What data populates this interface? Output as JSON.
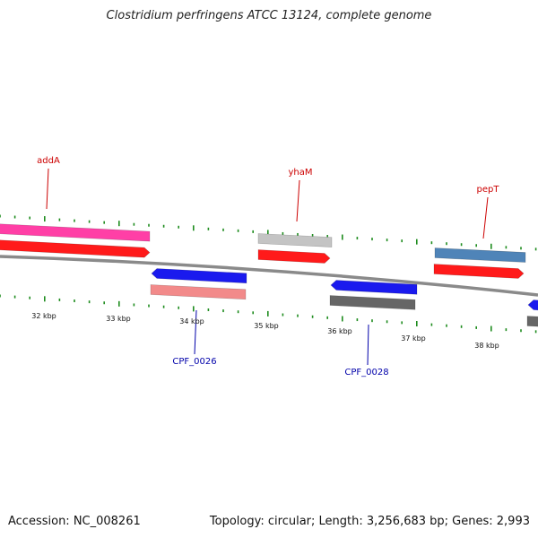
{
  "title": "Clostridium perfringens ATCC 13124, complete genome",
  "footer": {
    "accession": "Accession: NC_008261",
    "summary": "Topology: circular; Length: 3,256,683 bp; Genes: 2,993"
  },
  "colors": {
    "backbone": "#8a8a8a",
    "tick": "#1e8c1e",
    "forward_label": "#cc0000",
    "reverse_label": "#0000aa"
  },
  "scale_labels": [
    "32 kbp",
    "33 kbp",
    "34 kbp",
    "35 kbp",
    "36 kbp",
    "37 kbp",
    "38 kbp"
  ],
  "genes_forward": [
    {
      "label": "addA",
      "color": "#ff3fa6"
    },
    {
      "label": "",
      "color": "#ff1a1a"
    },
    {
      "label": "yhaM",
      "color": "#c4c4c4"
    },
    {
      "label": "",
      "color": "#ff1a1a"
    },
    {
      "label": "pepT",
      "color": "#4f84b8"
    },
    {
      "label": "",
      "color": "#ff1a1a"
    }
  ],
  "genes_reverse": [
    {
      "label": "",
      "color": "#1a1aee"
    },
    {
      "label": "CPF_0026",
      "color": "#f28a8a"
    },
    {
      "label": "",
      "color": "#1a1aee"
    },
    {
      "label": "CPF_0028",
      "color": "#666666"
    },
    {
      "label": "",
      "color": "#1a1aee"
    },
    {
      "label": "",
      "color": "#666666"
    }
  ]
}
